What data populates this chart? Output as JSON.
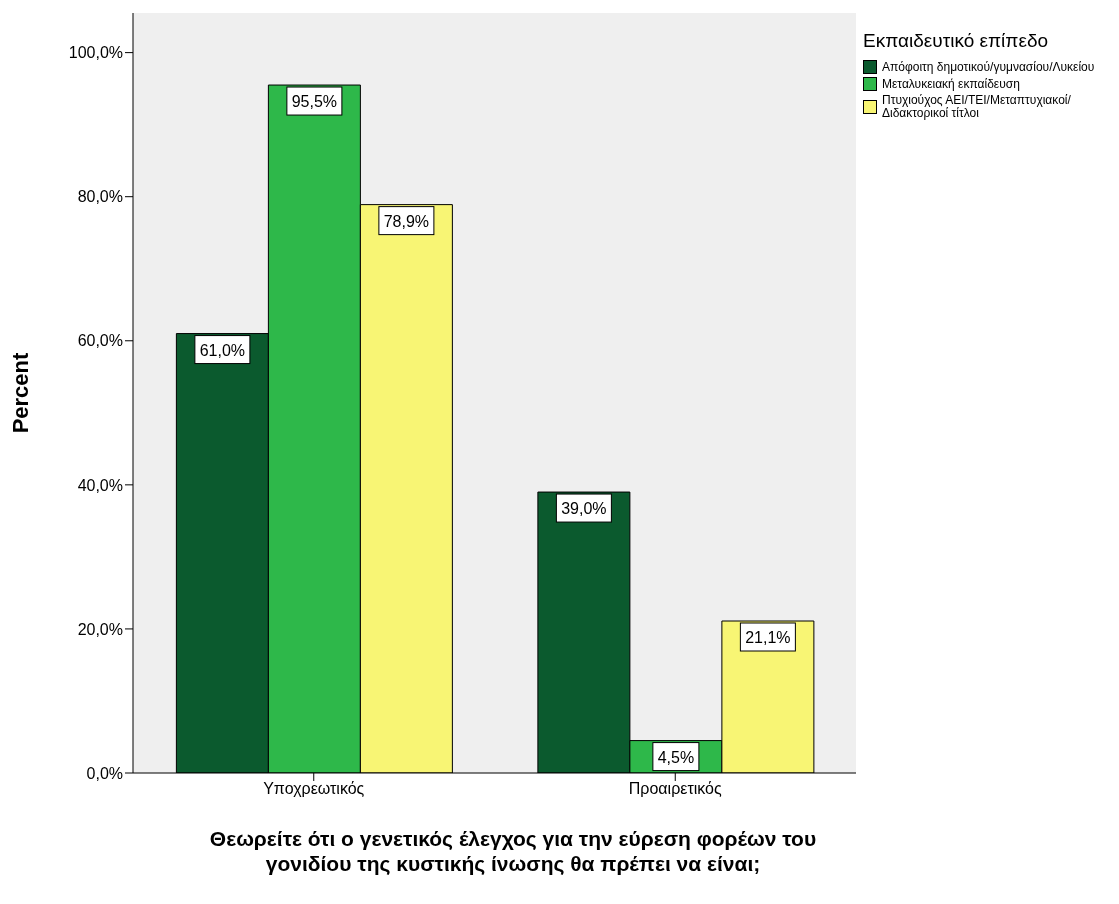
{
  "chart_data": {
    "type": "bar",
    "xlabel": "Θεωρείτε ότι ο γενετικός έλεγχος για την εύρεση φορέων του γονιδίου της κυστικής ίνωσης θα πρέπει να είναι;",
    "ylabel": "Percent",
    "legend_title": "Εκπαιδευτικό επίπεδο",
    "legend": "top right",
    "categories": [
      "Υποχρεωτικός",
      "Προαιρετικός"
    ],
    "series": [
      {
        "name": "Απόφοιτη δημοτικού/γυμνασίου/Λυκείου",
        "color": "#0b5a2e",
        "values": [
          61.0,
          39.0
        ],
        "value_labels": [
          "61,0%",
          "39,0%"
        ]
      },
      {
        "name": "Μεταλυκειακή εκπαίδευση",
        "color": "#2eb84a",
        "values": [
          95.5,
          4.5
        ],
        "value_labels": [
          "95,5%",
          "4,5%"
        ]
      },
      {
        "name": "Πτυχιούχος ΑΕΙ/ΤΕΙ/Μεταπτυχιακοί/Διδακτορικοί τίτλοι",
        "color": "#f8f574",
        "values": [
          78.9,
          21.1
        ],
        "value_labels": [
          "78,9%",
          "21,1%"
        ]
      }
    ],
    "ylim": [
      0,
      105.5
    ],
    "yticks": [
      {
        "value": 0,
        "label": "0,0%"
      },
      {
        "value": 20,
        "label": "20,0%"
      },
      {
        "value": 40,
        "label": "40,0%"
      },
      {
        "value": 60,
        "label": "60,0%"
      },
      {
        "value": 80,
        "label": "80,0%"
      },
      {
        "value": 100,
        "label": "100,0%"
      }
    ]
  }
}
